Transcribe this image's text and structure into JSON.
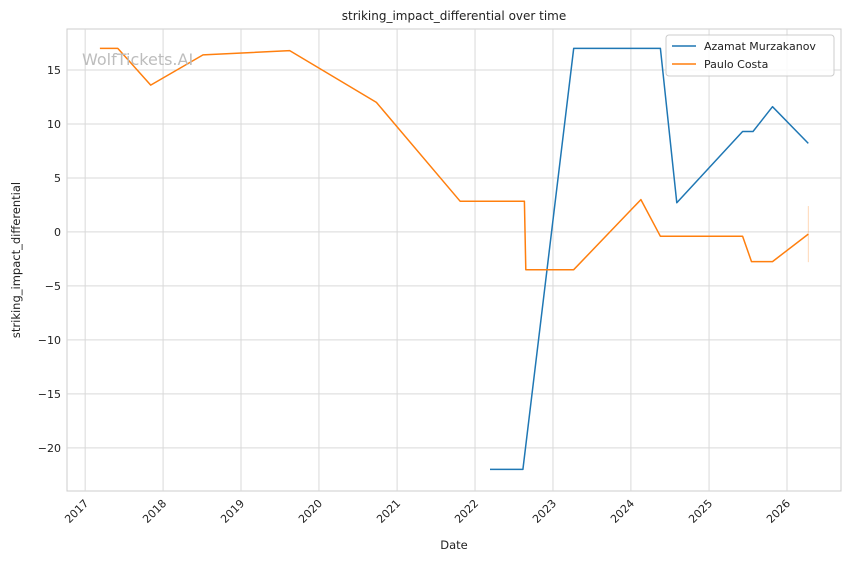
{
  "chart_data": {
    "type": "line",
    "title": "striking_impact_differential over time",
    "xlabel": "Date",
    "ylabel": "striking_impact_differential",
    "watermark": "WolfTickets.AI",
    "x_ticks": [
      "2017",
      "2018",
      "2019",
      "2020",
      "2021",
      "2022",
      "2023",
      "2024",
      "2025",
      "2026"
    ],
    "y_ticks": [
      "−20",
      "−15",
      "−10",
      "−5",
      "0",
      "5",
      "10",
      "15"
    ],
    "xlim": [
      "2016-10-08",
      "2026-09-11"
    ],
    "ylim": [
      -24.0,
      18.8
    ],
    "grid": true,
    "legend_position": "top-right",
    "series": [
      {
        "name": "Azamat Murzakanov",
        "color": "#1f77b4",
        "points": [
          [
            "2022-03-12",
            -22.0
          ],
          [
            "2022-08-13",
            -22.0
          ],
          [
            "2023-04-08",
            17.0
          ],
          [
            "2024-05-18",
            17.0
          ],
          [
            "2024-08-03",
            2.7
          ],
          [
            "2025-06-07",
            9.3
          ],
          [
            "2025-07-26",
            9.3
          ],
          [
            "2025-10-25",
            11.6
          ],
          [
            "2026-04-11",
            8.2
          ]
        ]
      },
      {
        "name": "Paulo Costa",
        "color": "#ff7f0e",
        "points": [
          [
            "2017-03-11",
            17.0
          ],
          [
            "2017-06-03",
            17.0
          ],
          [
            "2017-11-04",
            13.6
          ],
          [
            "2018-07-07",
            16.4
          ],
          [
            "2019-08-17",
            16.8
          ],
          [
            "2020-09-26",
            12.0
          ],
          [
            "2021-10-23",
            2.85
          ],
          [
            "2022-08-20",
            2.85
          ],
          [
            "2022-08-27",
            -3.5
          ],
          [
            "2023-04-08",
            -3.5
          ],
          [
            "2024-02-17",
            3.0
          ],
          [
            "2024-05-18",
            -0.4
          ],
          [
            "2025-06-07",
            -0.4
          ],
          [
            "2025-07-19",
            -2.75
          ],
          [
            "2025-10-25",
            -2.75
          ],
          [
            "2026-04-11",
            -0.2
          ]
        ]
      }
    ],
    "error_bar": {
      "x": "2026-04-11",
      "low": -2.8,
      "high": 2.4,
      "color": "#ff7f0e"
    }
  }
}
